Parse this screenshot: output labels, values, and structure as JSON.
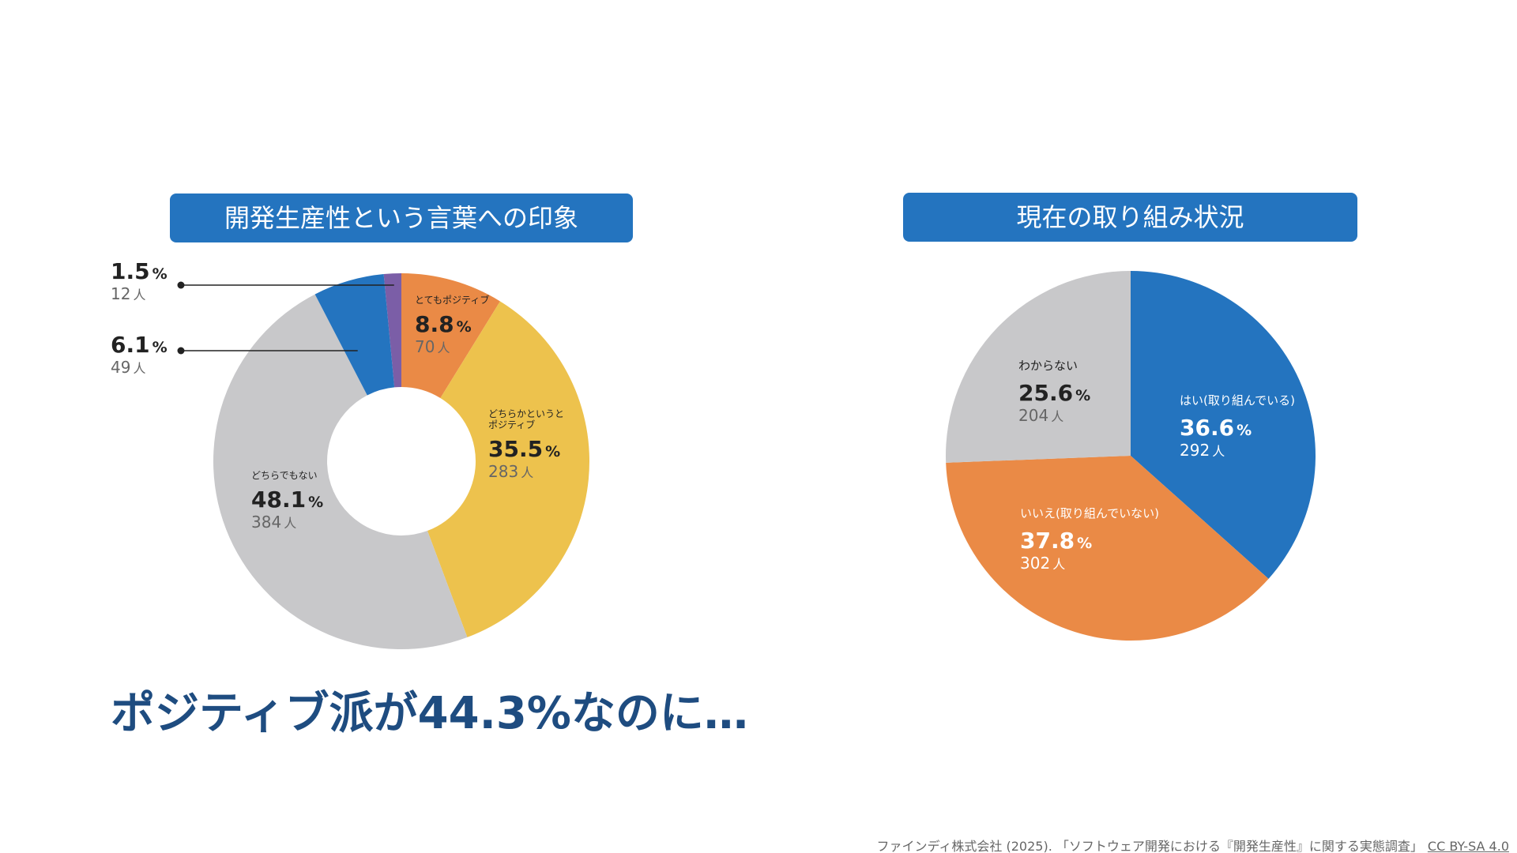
{
  "headline": "ポジティブ派が44.3%なのに…",
  "footer": {
    "citation": "ファインディ株式会社 (2025). 「ソフトウェア開発における『開発生産性』に関する実態調査」",
    "license": "CC BY-SA 4.0"
  },
  "chart_data": [
    {
      "type": "donut",
      "title": "開発生産性という言葉への印象",
      "slices": [
        {
          "label": "",
          "percent": "1.5",
          "count": "12",
          "value": 1.5,
          "color": "#7b5ea7"
        },
        {
          "label": "とてもポジティブ",
          "percent": "8.8",
          "count": "70",
          "value": 8.8,
          "color": "#ea8a46"
        },
        {
          "label": "どちらかというと\nポジティブ",
          "percent": "35.5",
          "count": "283",
          "value": 35.5,
          "color": "#edc24d"
        },
        {
          "label": "どちらでもない",
          "percent": "48.1",
          "count": "384",
          "value": 48.1,
          "color": "#c8c8ca"
        },
        {
          "label": "",
          "percent": "6.1",
          "count": "49",
          "value": 6.1,
          "color": "#2474bf"
        }
      ],
      "unit_percent": "%",
      "unit_count": "人"
    },
    {
      "type": "pie",
      "title": "現在の取り組み状況",
      "slices": [
        {
          "label": "はい(取り組んでいる)",
          "percent": "36.6",
          "count": "292",
          "value": 36.6,
          "color": "#2474bf"
        },
        {
          "label": "いいえ(取り組んでいない)",
          "percent": "37.8",
          "count": "302",
          "value": 37.8,
          "color": "#ea8a46"
        },
        {
          "label": "わからない",
          "percent": "25.6",
          "count": "204",
          "value": 25.6,
          "color": "#c8c8ca"
        }
      ],
      "unit_percent": "%",
      "unit_count": "人"
    }
  ]
}
